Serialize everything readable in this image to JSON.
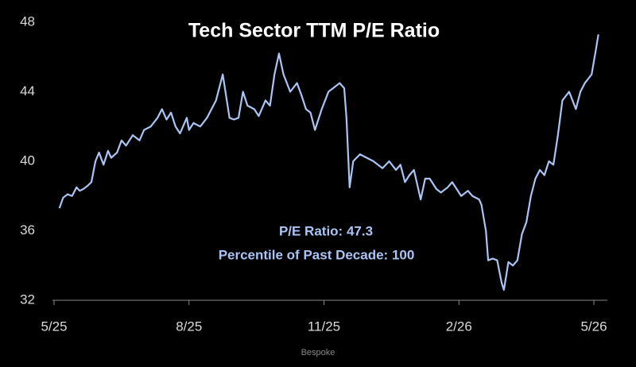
{
  "chart_data": {
    "type": "line",
    "title": "Tech Sector TTM P/E Ratio",
    "annotations": [
      "P/E Ratio: 47.3",
      "Percentile of Past Decade: 100"
    ],
    "source": "Bespoke",
    "xlim": [
      0,
      12.3
    ],
    "xticks": [
      {
        "value": 0,
        "label": "5/25"
      },
      {
        "value": 3,
        "label": "8/25"
      },
      {
        "value": 6,
        "label": "11/25"
      },
      {
        "value": 9,
        "label": "2/26"
      },
      {
        "value": 12,
        "label": "5/26"
      }
    ],
    "ylim": [
      32,
      48
    ],
    "yticks": [
      32,
      36,
      40,
      44,
      48
    ],
    "series": [
      {
        "color": "#a9c4f5",
        "x": [
          0.12,
          0.2,
          0.3,
          0.4,
          0.5,
          0.57,
          0.65,
          0.75,
          0.83,
          0.92,
          1.0,
          1.1,
          1.2,
          1.27,
          1.4,
          1.5,
          1.6,
          1.75,
          1.9,
          2.0,
          2.15,
          2.3,
          2.4,
          2.5,
          2.6,
          2.7,
          2.8,
          2.95,
          3.0,
          3.1,
          3.25,
          3.4,
          3.5,
          3.6,
          3.75,
          3.9,
          4.0,
          4.1,
          4.2,
          4.3,
          4.45,
          4.55,
          4.7,
          4.8,
          4.9,
          5.0,
          5.1,
          5.25,
          5.4,
          5.5,
          5.6,
          5.7,
          5.8,
          5.95,
          6.1,
          6.2,
          6.35,
          6.45,
          6.5,
          6.57,
          6.65,
          6.8,
          6.95,
          7.1,
          7.2,
          7.3,
          7.45,
          7.6,
          7.7,
          7.8,
          7.9,
          8.0,
          8.15,
          8.25,
          8.35,
          8.5,
          8.6,
          8.75,
          8.85,
          9.05,
          9.2,
          9.3,
          9.45,
          9.5,
          9.6,
          9.65,
          9.75,
          9.85,
          9.95,
          10.0,
          10.1,
          10.2,
          10.3,
          10.4,
          10.5,
          10.6,
          10.7,
          10.8,
          10.9,
          11.0,
          11.1,
          11.2,
          11.3,
          11.45,
          11.6,
          11.7,
          11.8,
          11.95,
          12.05,
          12.1
        ],
        "values": [
          37.3,
          37.9,
          38.1,
          38.0,
          38.5,
          38.3,
          38.4,
          38.6,
          38.8,
          40.0,
          40.5,
          39.8,
          40.6,
          40.2,
          40.5,
          41.2,
          40.9,
          41.5,
          41.2,
          41.8,
          42.0,
          42.5,
          43.0,
          42.4,
          42.8,
          42.0,
          41.6,
          42.5,
          41.8,
          42.2,
          42.0,
          42.5,
          43.0,
          43.5,
          45.0,
          42.5,
          42.4,
          42.5,
          44.0,
          43.2,
          43.0,
          42.6,
          43.5,
          43.2,
          45.0,
          46.2,
          45.0,
          44.0,
          44.5,
          43.8,
          43.0,
          42.8,
          41.8,
          43.0,
          44.0,
          44.2,
          44.5,
          44.2,
          42.5,
          38.5,
          40.0,
          40.4,
          40.2,
          40.0,
          39.8,
          39.6,
          40.0,
          39.5,
          39.8,
          38.8,
          39.2,
          39.5,
          37.8,
          39.0,
          39.0,
          38.4,
          38.2,
          38.5,
          38.8,
          38.0,
          38.3,
          38.0,
          37.8,
          37.5,
          36.0,
          34.3,
          34.4,
          34.3,
          33.0,
          32.6,
          34.2,
          34.0,
          34.3,
          35.8,
          36.5,
          38.0,
          39.0,
          39.5,
          39.2,
          40.0,
          39.8,
          41.5,
          43.5,
          44.0,
          43.0,
          44.0,
          44.5,
          45.0,
          46.5,
          47.3
        ]
      }
    ]
  }
}
